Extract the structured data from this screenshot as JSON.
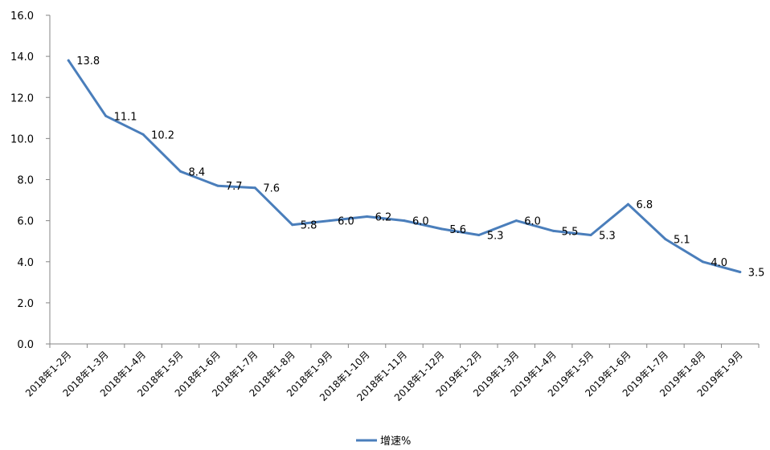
{
  "chart_data": {
    "type": "line",
    "categories": [
      "2018年1-2月",
      "2018年1-3月",
      "2018年1-4月",
      "2018年1-5月",
      "2018年1-6月",
      "2018年1-7月",
      "2018年1-8月",
      "2018年1-9月",
      "2018年1-10月",
      "2018年1-11月",
      "2018年1-12月",
      "2019年1-2月",
      "2019年1-3月",
      "2019年1-4月",
      "2019年1-5月",
      "2019年1-6月",
      "2019年1-7月",
      "2019年1-8月",
      "2019年1-9月"
    ],
    "series": [
      {
        "name": "增速%",
        "values": [
          13.8,
          11.1,
          10.2,
          8.4,
          7.7,
          7.6,
          5.8,
          6.0,
          6.2,
          6.0,
          5.6,
          5.3,
          6.0,
          5.5,
          5.3,
          6.8,
          5.1,
          4.0,
          3.5
        ],
        "labels": [
          "13.8",
          "11.1",
          "10.2",
          "8.4",
          "7.7",
          "7.6",
          "5.8",
          "6.0",
          "6.2",
          "6.0",
          "5.6",
          "5.3",
          "6.0",
          "5.5",
          "5.3",
          "6.8",
          "5.1",
          "4.0",
          "3.5"
        ],
        "color": "#4a7ebb"
      }
    ],
    "ylim": [
      0,
      16
    ],
    "yticks": [
      "0.0",
      "2.0",
      "4.0",
      "6.0",
      "8.0",
      "10.0",
      "12.0",
      "14.0",
      "16.0"
    ],
    "title": "",
    "xlabel": "",
    "ylabel": "",
    "grid": false,
    "legend": "bottom"
  }
}
